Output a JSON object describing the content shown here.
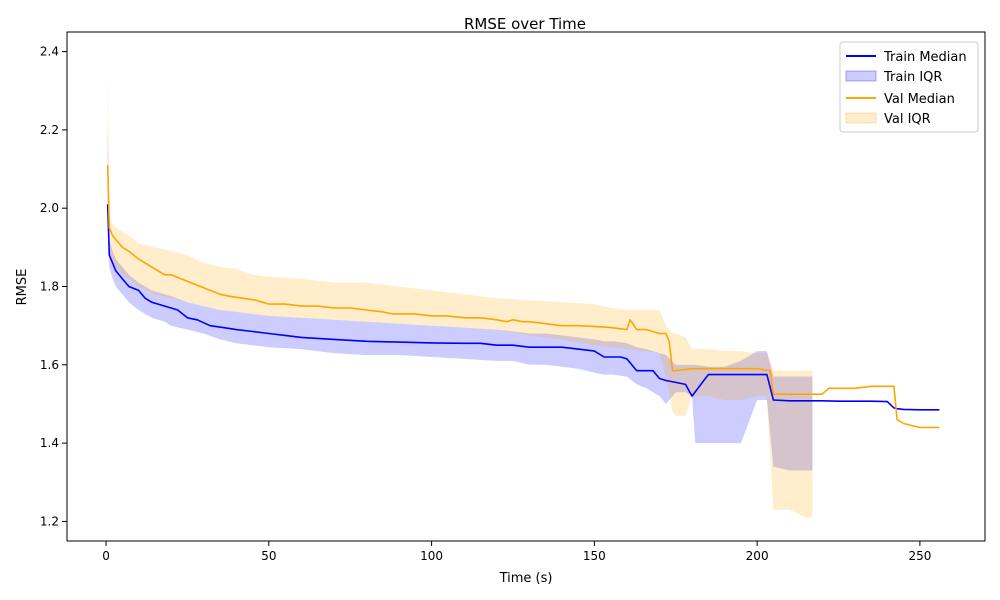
{
  "chart_data": {
    "type": "line",
    "title": "RMSE over Time",
    "xlabel": "Time (s)",
    "ylabel": "RMSE",
    "xlim": [
      -12,
      270
    ],
    "ylim": [
      1.15,
      2.45
    ],
    "x_ticks": [
      0,
      50,
      100,
      150,
      200,
      250
    ],
    "y_ticks": [
      1.2,
      1.4,
      1.6,
      1.8,
      2.0,
      2.2,
      2.4
    ],
    "grid": false,
    "legend_position": "top-right",
    "legend": [
      "Train Median",
      "Train IQR",
      "Val Median",
      "Val IQR"
    ],
    "colors": {
      "train": "#0000ff",
      "train_iqr": "#0000ff",
      "val": "#ffa500",
      "val_iqr": "#ffa500"
    },
    "series": [
      {
        "name": "Train Median",
        "kind": "line",
        "color": "#0000ff",
        "x": [
          0.5,
          1,
          2,
          3,
          5,
          7,
          10,
          12,
          14,
          16,
          18,
          20,
          22,
          25,
          28,
          32,
          36,
          40,
          45,
          50,
          55,
          60,
          70,
          80,
          90,
          100,
          110,
          115,
          120,
          125,
          130,
          135,
          140,
          145,
          150,
          153,
          156,
          158,
          160,
          163,
          166,
          168,
          170,
          172,
          175,
          178,
          180,
          185,
          190,
          195,
          200,
          203,
          205,
          210,
          215,
          220,
          225,
          230,
          235,
          240,
          242,
          243,
          245,
          250,
          256
        ],
        "y": [
          2.01,
          1.88,
          1.86,
          1.84,
          1.82,
          1.8,
          1.79,
          1.77,
          1.76,
          1.755,
          1.75,
          1.745,
          1.74,
          1.72,
          1.715,
          1.7,
          1.695,
          1.69,
          1.685,
          1.68,
          1.675,
          1.67,
          1.665,
          1.66,
          1.658,
          1.656,
          1.655,
          1.655,
          1.65,
          1.65,
          1.645,
          1.645,
          1.645,
          1.64,
          1.635,
          1.62,
          1.62,
          1.62,
          1.615,
          1.585,
          1.585,
          1.585,
          1.565,
          1.56,
          1.555,
          1.55,
          1.52,
          1.575,
          1.575,
          1.575,
          1.575,
          1.575,
          1.51,
          1.508,
          1.508,
          1.508,
          1.507,
          1.507,
          1.507,
          1.506,
          1.49,
          1.488,
          1.486,
          1.485,
          1.485
        ]
      },
      {
        "name": "Train IQR",
        "kind": "band",
        "color": "#0000ff",
        "x": [
          0.5,
          1,
          2,
          3,
          5,
          7,
          10,
          12,
          14,
          16,
          18,
          20,
          25,
          30,
          35,
          40,
          45,
          50,
          60,
          70,
          80,
          90,
          100,
          110,
          120,
          125,
          130,
          135,
          140,
          145,
          150,
          153,
          156,
          160,
          163,
          166,
          170,
          172,
          175,
          178,
          180,
          181,
          185,
          190,
          195,
          200,
          203,
          205,
          210,
          215,
          217
        ],
        "low": [
          2.0,
          1.85,
          1.82,
          1.8,
          1.78,
          1.76,
          1.74,
          1.73,
          1.72,
          1.715,
          1.71,
          1.7,
          1.69,
          1.68,
          1.665,
          1.655,
          1.65,
          1.645,
          1.64,
          1.63,
          1.625,
          1.625,
          1.62,
          1.615,
          1.61,
          1.61,
          1.6,
          1.6,
          1.595,
          1.59,
          1.58,
          1.575,
          1.575,
          1.57,
          1.55,
          1.54,
          1.52,
          1.5,
          1.53,
          1.53,
          1.52,
          1.4,
          1.4,
          1.4,
          1.4,
          1.51,
          1.51,
          1.34,
          1.33,
          1.33,
          1.33
        ],
        "high": [
          2.22,
          1.92,
          1.89,
          1.87,
          1.85,
          1.83,
          1.81,
          1.8,
          1.79,
          1.785,
          1.78,
          1.775,
          1.76,
          1.75,
          1.74,
          1.735,
          1.73,
          1.725,
          1.72,
          1.715,
          1.71,
          1.705,
          1.7,
          1.695,
          1.69,
          1.685,
          1.68,
          1.68,
          1.675,
          1.67,
          1.665,
          1.66,
          1.66,
          1.655,
          1.645,
          1.64,
          1.63,
          1.625,
          1.6,
          1.6,
          1.6,
          1.6,
          1.595,
          1.595,
          1.61,
          1.635,
          1.635,
          1.57,
          1.57,
          1.57,
          1.57
        ]
      },
      {
        "name": "Val Median",
        "kind": "line",
        "color": "#ffa500",
        "x": [
          0.5,
          1,
          2,
          3,
          5,
          7,
          10,
          12,
          14,
          16,
          18,
          20,
          23,
          26,
          29,
          32,
          35,
          38,
          42,
          46,
          50,
          55,
          60,
          65,
          70,
          75,
          80,
          85,
          88,
          90,
          95,
          100,
          105,
          110,
          115,
          120,
          123,
          125,
          128,
          130,
          135,
          140,
          145,
          150,
          155,
          160,
          161,
          163,
          166,
          170,
          172,
          173,
          174,
          175,
          180,
          185,
          190,
          195,
          200,
          204,
          205,
          210,
          215,
          220,
          222,
          225,
          230,
          235,
          240,
          242,
          243,
          245,
          250,
          256
        ],
        "y": [
          2.11,
          1.95,
          1.93,
          1.92,
          1.9,
          1.89,
          1.87,
          1.86,
          1.85,
          1.84,
          1.83,
          1.83,
          1.82,
          1.81,
          1.8,
          1.79,
          1.78,
          1.775,
          1.77,
          1.765,
          1.755,
          1.755,
          1.75,
          1.75,
          1.745,
          1.745,
          1.74,
          1.735,
          1.73,
          1.73,
          1.73,
          1.725,
          1.725,
          1.72,
          1.72,
          1.715,
          1.71,
          1.715,
          1.71,
          1.71,
          1.705,
          1.7,
          1.7,
          1.698,
          1.695,
          1.69,
          1.715,
          1.69,
          1.69,
          1.68,
          1.68,
          1.66,
          1.585,
          1.585,
          1.59,
          1.59,
          1.59,
          1.59,
          1.59,
          1.585,
          1.525,
          1.525,
          1.525,
          1.525,
          1.54,
          1.54,
          1.54,
          1.545,
          1.545,
          1.545,
          1.46,
          1.45,
          1.44,
          1.44
        ]
      },
      {
        "name": "Val IQR",
        "kind": "band",
        "color": "#ffa500",
        "x": [
          0.5,
          1,
          2,
          3,
          5,
          7,
          10,
          15,
          20,
          25,
          30,
          35,
          40,
          45,
          50,
          60,
          70,
          80,
          90,
          100,
          110,
          120,
          130,
          140,
          150,
          155,
          160,
          165,
          170,
          172,
          174,
          175,
          178,
          180,
          185,
          190,
          195,
          200,
          203,
          205,
          210,
          215,
          217
        ],
        "low": [
          2.08,
          1.88,
          1.86,
          1.85,
          1.83,
          1.82,
          1.8,
          1.78,
          1.77,
          1.76,
          1.75,
          1.74,
          1.735,
          1.73,
          1.725,
          1.72,
          1.715,
          1.71,
          1.705,
          1.7,
          1.695,
          1.69,
          1.675,
          1.665,
          1.65,
          1.645,
          1.64,
          1.635,
          1.63,
          1.57,
          1.48,
          1.47,
          1.47,
          1.52,
          1.52,
          1.51,
          1.51,
          1.52,
          1.52,
          1.23,
          1.23,
          1.21,
          1.21
        ],
        "high": [
          2.36,
          1.98,
          1.96,
          1.95,
          1.94,
          1.93,
          1.91,
          1.9,
          1.89,
          1.88,
          1.86,
          1.85,
          1.845,
          1.83,
          1.825,
          1.82,
          1.81,
          1.81,
          1.8,
          1.79,
          1.78,
          1.77,
          1.765,
          1.76,
          1.755,
          1.745,
          1.74,
          1.74,
          1.74,
          1.7,
          1.68,
          1.68,
          1.67,
          1.64,
          1.64,
          1.635,
          1.635,
          1.63,
          1.63,
          1.585,
          1.585,
          1.585,
          1.585
        ]
      }
    ]
  }
}
